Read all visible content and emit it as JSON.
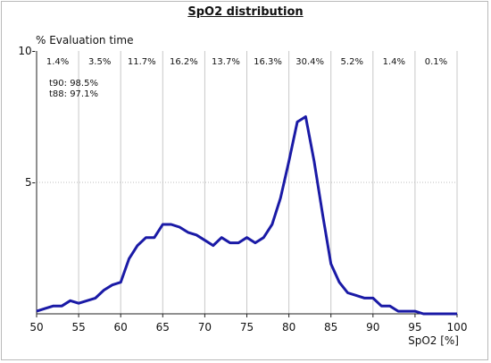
{
  "chart_data": {
    "type": "line",
    "title": "SpO2 distribution",
    "ylabel": "% Evaluation time",
    "xlabel": "SpO2 [%]",
    "xlim": [
      50,
      100
    ],
    "ylim": [
      0,
      10
    ],
    "x_ticks": [
      50,
      55,
      60,
      65,
      70,
      75,
      80,
      85,
      90,
      95,
      100
    ],
    "y_ticks": [
      5,
      10
    ],
    "y_tick_labels": [
      "5-",
      "10-"
    ],
    "bin_percentages": [
      "1.4%",
      "3.5%",
      "11.7%",
      "16.2%",
      "13.7%",
      "16.3%",
      "30.4%",
      "5.2%",
      "1.4%",
      "0.1%"
    ],
    "stats": [
      "t90: 98.5%",
      "t88: 97.1%"
    ],
    "grid": "vertical",
    "line_color": "#1a1aa6",
    "series": [
      {
        "x": [
          50,
          51,
          52,
          53,
          54,
          55,
          56,
          57,
          58,
          59,
          60,
          61,
          62,
          63,
          64,
          65,
          66,
          67,
          68,
          69,
          70,
          71,
          72,
          73,
          74,
          75,
          76,
          77,
          78,
          79,
          80,
          81,
          82,
          83,
          84,
          85,
          86,
          87,
          88,
          89,
          90,
          91,
          92,
          93,
          94,
          95,
          96,
          97,
          98,
          99,
          100
        ],
        "values": [
          0.1,
          0.2,
          0.3,
          0.3,
          0.5,
          0.4,
          0.5,
          0.6,
          0.9,
          1.1,
          1.2,
          2.1,
          2.6,
          2.9,
          2.9,
          3.4,
          3.4,
          3.3,
          3.1,
          3.0,
          2.8,
          2.6,
          2.9,
          2.7,
          2.7,
          2.9,
          2.7,
          2.9,
          3.4,
          4.4,
          5.8,
          7.3,
          7.5,
          5.8,
          3.8,
          1.9,
          1.2,
          0.8,
          0.7,
          0.6,
          0.6,
          0.3,
          0.3,
          0.1,
          0.1,
          0.1,
          0.0,
          0.0,
          0.0,
          0.0,
          0.0
        ]
      }
    ]
  }
}
